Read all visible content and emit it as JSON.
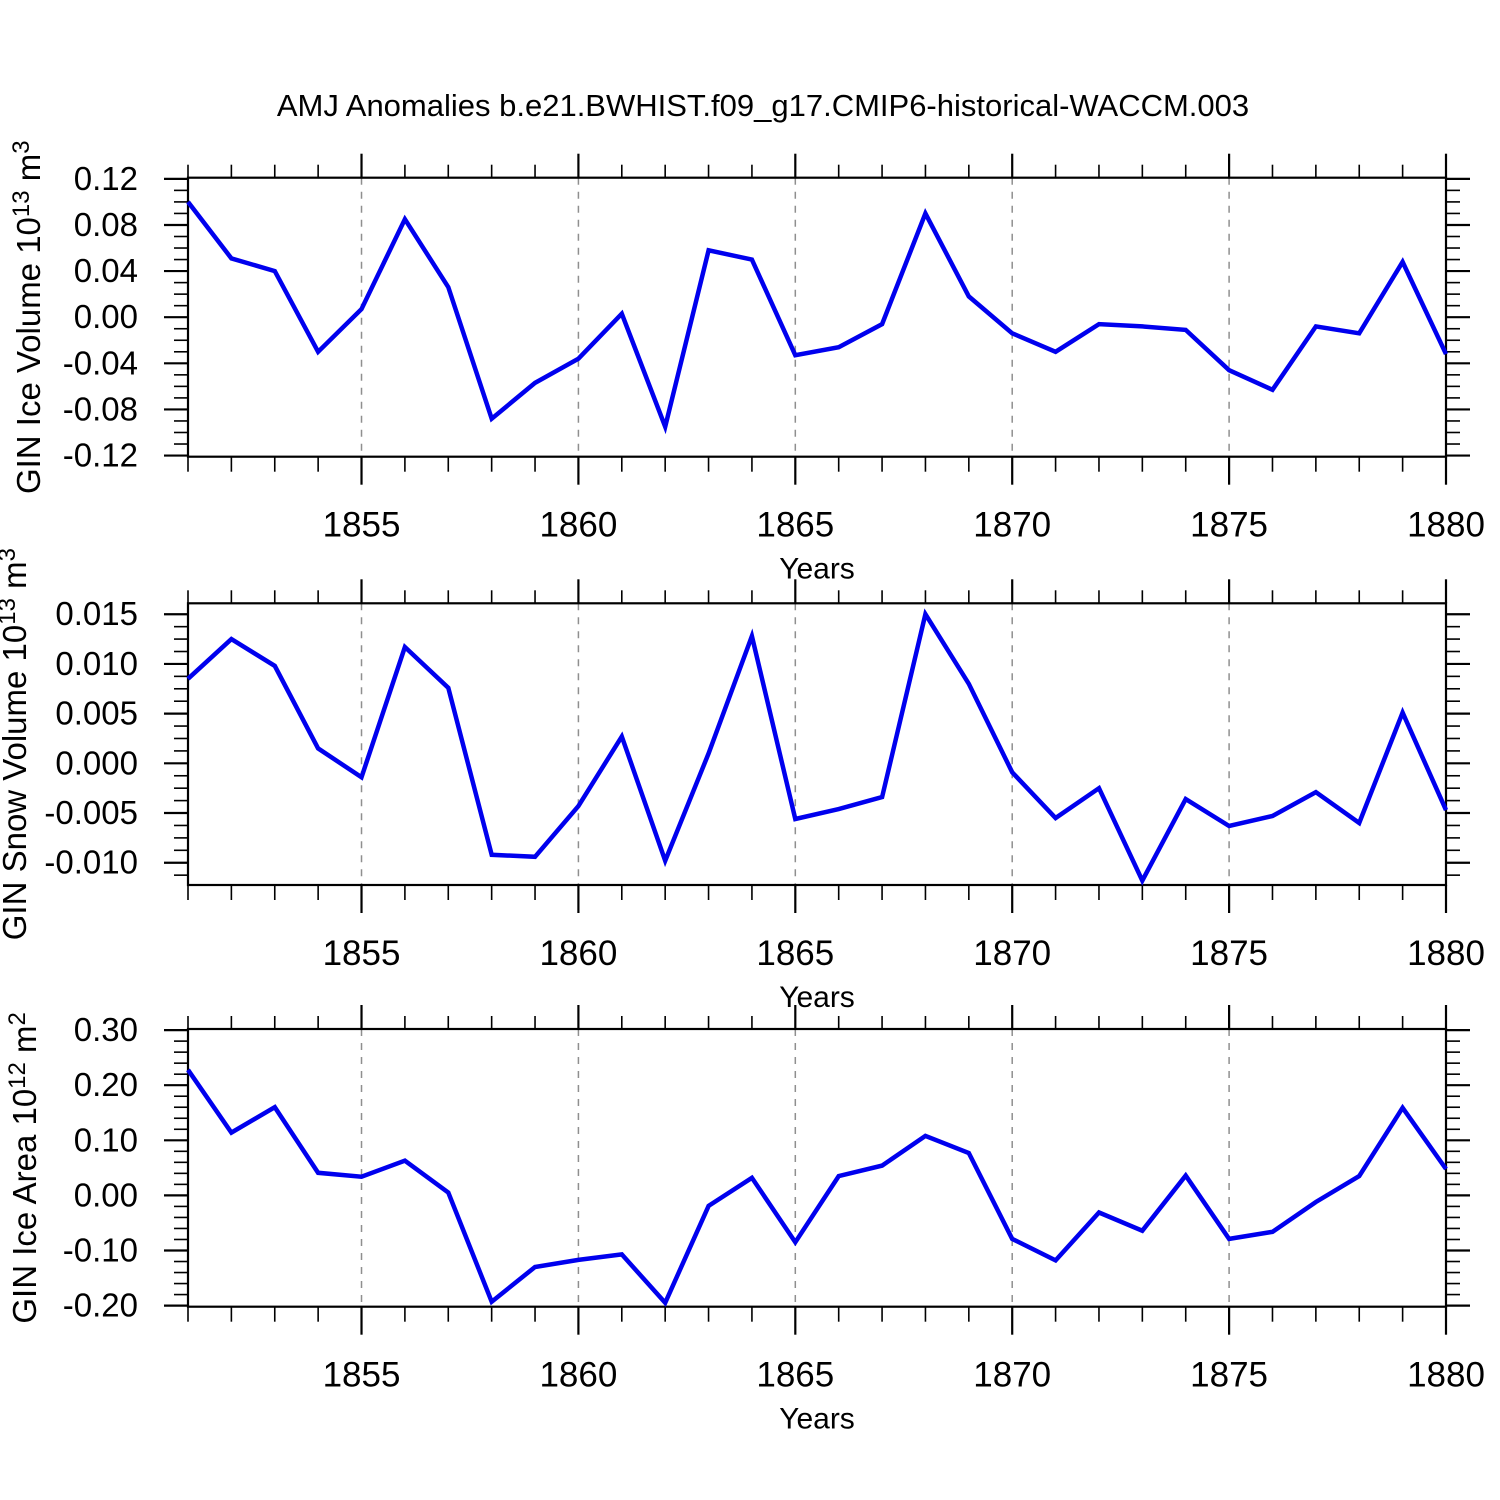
{
  "title": "AMJ Anomalies b.e21.BWHIST.f09_g17.CMIP6-historical-WACCM.003",
  "colors": {
    "line": "#0000ee",
    "grid": "#8f8f8f",
    "axis": "#000000",
    "text": "#000000"
  },
  "x_axis": {
    "label": "Years",
    "years": [
      1851,
      1852,
      1853,
      1854,
      1855,
      1856,
      1857,
      1858,
      1859,
      1860,
      1861,
      1862,
      1863,
      1864,
      1865,
      1866,
      1867,
      1868,
      1869,
      1870,
      1871,
      1872,
      1873,
      1874,
      1875,
      1876,
      1877,
      1878,
      1879,
      1880
    ],
    "xlim": [
      1851,
      1880
    ],
    "tick_labels": [
      {
        "v": 1855,
        "l": "1855",
        "grid": true
      },
      {
        "v": 1860,
        "l": "1860",
        "grid": true
      },
      {
        "v": 1865,
        "l": "1865",
        "grid": true
      },
      {
        "v": 1870,
        "l": "1870",
        "grid": true
      },
      {
        "v": 1875,
        "l": "1875",
        "grid": true
      },
      {
        "v": 1880,
        "l": "1880",
        "grid": false
      }
    ]
  },
  "chart_data": [
    {
      "type": "line",
      "name": "gin-ice-volume",
      "ylabel": "GIN Ice Volume 10^13 m^3",
      "ylabel_parts": [
        {
          "t": "GIN Ice Volume 10"
        },
        {
          "t": "13",
          "sup": true
        },
        {
          "t": " m"
        },
        {
          "t": "3",
          "sup": true
        }
      ],
      "xlabel": "Years",
      "ylim": [
        -0.121,
        0.121
      ],
      "yminor_step": 0.01,
      "yticks": [
        {
          "v": 0.12,
          "l": "0.12"
        },
        {
          "v": 0.08,
          "l": "0.08"
        },
        {
          "v": 0.04,
          "l": "0.04"
        },
        {
          "v": 0.0,
          "l": "0.00"
        },
        {
          "v": -0.04,
          "l": "-0.04"
        },
        {
          "v": -0.08,
          "l": "-0.08"
        },
        {
          "v": -0.12,
          "l": "-0.12"
        }
      ],
      "values": [
        0.1,
        0.051,
        0.04,
        -0.03,
        0.007,
        0.085,
        0.026,
        -0.088,
        -0.057,
        -0.036,
        0.003,
        -0.095,
        0.058,
        0.05,
        -0.033,
        -0.026,
        -0.006,
        0.09,
        0.018,
        -0.014,
        -0.03,
        -0.006,
        -0.008,
        -0.011,
        -0.046,
        -0.063,
        -0.008,
        -0.014,
        0.048,
        -0.032
      ]
    },
    {
      "type": "line",
      "name": "gin-snow-volume",
      "ylabel": "GIN Snow Volume 10^13 m^3",
      "ylabel_parts": [
        {
          "t": "GIN Snow Volume 10"
        },
        {
          "t": "13",
          "sup": true
        },
        {
          "t": " m"
        },
        {
          "t": "3",
          "sup": true
        }
      ],
      "xlabel": "Years",
      "ylim": [
        -0.01224,
        0.0161
      ],
      "yminor_step": 0.00125,
      "yticks": [
        {
          "v": 0.015,
          "l": "0.015"
        },
        {
          "v": 0.01,
          "l": "0.010"
        },
        {
          "v": 0.005,
          "l": "0.005"
        },
        {
          "v": 0.0,
          "l": "0.000"
        },
        {
          "v": -0.005,
          "l": "-0.005"
        },
        {
          "v": -0.01,
          "l": "-0.010"
        }
      ],
      "values": [
        0.0085,
        0.0125,
        0.0098,
        0.0015,
        -0.0014,
        0.0117,
        0.0076,
        -0.0092,
        -0.0094,
        -0.0043,
        0.0027,
        -0.0098,
        0.001,
        0.0128,
        -0.0056,
        -0.0046,
        -0.0034,
        0.015,
        0.008,
        -0.0009,
        -0.0055,
        -0.0025,
        -0.0118,
        -0.0036,
        -0.0063,
        -0.0053,
        -0.0029,
        -0.006,
        0.0051,
        -0.0047
      ]
    },
    {
      "type": "line",
      "name": "gin-ice-area",
      "ylabel": "GIN Ice Area 10^12 m^2",
      "ylabel_parts": [
        {
          "t": "GIN Ice Area 10"
        },
        {
          "t": "12",
          "sup": true
        },
        {
          "t": " m"
        },
        {
          "t": "2",
          "sup": true
        }
      ],
      "xlabel": "Years",
      "ylim": [
        -0.202,
        0.302
      ],
      "yminor_step": 0.02,
      "yticks": [
        {
          "v": 0.3,
          "l": "0.30"
        },
        {
          "v": 0.2,
          "l": "0.20"
        },
        {
          "v": 0.1,
          "l": "0.10"
        },
        {
          "v": 0.0,
          "l": "0.00"
        },
        {
          "v": -0.1,
          "l": "-0.10"
        },
        {
          "v": -0.2,
          "l": "-0.20"
        }
      ],
      "values": [
        0.228,
        0.114,
        0.16,
        0.041,
        0.034,
        0.063,
        0.005,
        -0.193,
        -0.13,
        -0.117,
        -0.107,
        -0.195,
        -0.019,
        0.032,
        -0.085,
        0.035,
        0.054,
        0.108,
        0.077,
        -0.079,
        -0.118,
        -0.031,
        -0.064,
        0.036,
        -0.079,
        -0.066,
        -0.012,
        0.035,
        0.159,
        0.048
      ]
    }
  ]
}
